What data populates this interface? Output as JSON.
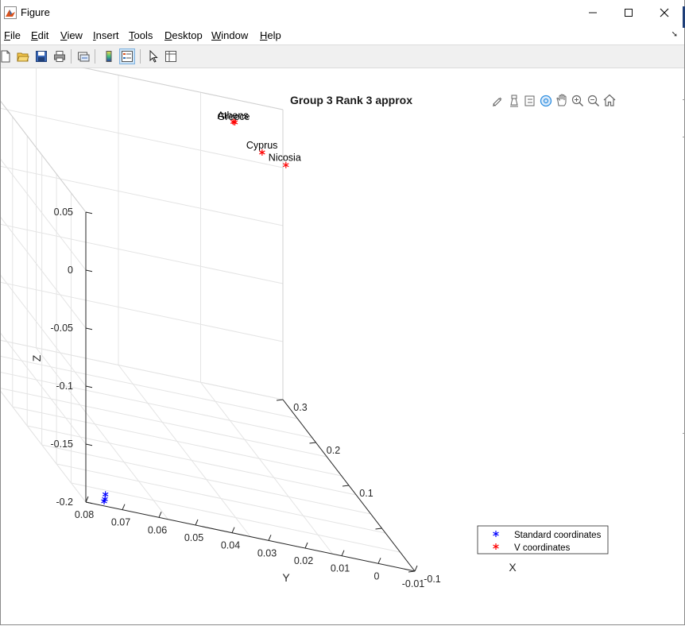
{
  "window": {
    "title": "Figure",
    "controls": {
      "minimize": "—",
      "maximize": "☐",
      "close": "✕"
    }
  },
  "menu": {
    "items": [
      {
        "label": "File",
        "key": "F"
      },
      {
        "label": "Edit",
        "key": "E"
      },
      {
        "label": "View",
        "key": "V"
      },
      {
        "label": "Insert",
        "key": "I"
      },
      {
        "label": "Tools",
        "key": "T"
      },
      {
        "label": "Desktop",
        "key": "D"
      },
      {
        "label": "Window",
        "key": "W"
      },
      {
        "label": "Help",
        "key": "H"
      }
    ]
  },
  "toolbar": {
    "icons": [
      "new-figure-icon",
      "open-file-icon",
      "save-icon",
      "print-icon",
      "link-plot-icon",
      "colorbar-icon",
      "legend-icon",
      "edit-plot-icon",
      "property-inspector-icon"
    ]
  },
  "axes_toolbar": {
    "icons": [
      "brush-icon",
      "data-tips-icon",
      "data-cursor-icon",
      "rotate-3d-icon",
      "pan-icon",
      "zoom-in-icon",
      "zoom-out-icon",
      "home-icon"
    ]
  },
  "chart_data": {
    "type": "scatter",
    "title": "Group 3 Rank 3 approx",
    "xlabel": "X",
    "ylabel": "Y",
    "zlabel": "Z",
    "xlim": [
      -0.1,
      0.3
    ],
    "ylim": [
      -0.01,
      0.08
    ],
    "zlim": [
      -0.2,
      0.05
    ],
    "xticks": [
      "-0.1",
      "0.1",
      "0.2",
      "0.3"
    ],
    "yticks": [
      "0.08",
      "0.07",
      "0.06",
      "0.05",
      "0.04",
      "0.03",
      "0.02",
      "0.01",
      "0",
      "-0.01"
    ],
    "zticks": [
      "0.05",
      "0",
      "-0.05",
      "-0.1",
      "-0.15",
      "-0.2"
    ],
    "grid": true,
    "legend_position": "bottom-right",
    "series": [
      {
        "name": "Standard coordinates",
        "color": "#0000ff",
        "marker": "*",
        "points": [
          {
            "x": -0.1,
            "y": 0.075,
            "z": -0.196
          },
          {
            "x": -0.097,
            "y": 0.0745,
            "z": -0.195
          },
          {
            "x": -0.093,
            "y": 0.074,
            "z": -0.192
          }
        ]
      },
      {
        "name": "V coordinates",
        "color": "#ff0000",
        "marker": "*",
        "points": [
          {
            "x": 0.18,
            "y": 0.0,
            "z": 0.04,
            "label": "Nicosia"
          },
          {
            "x": 0.23,
            "y": 0.002,
            "z": 0.031,
            "label": "Cyprus"
          },
          {
            "x": 0.285,
            "y": 0.0045,
            "z": 0.035,
            "label": "Greece"
          },
          {
            "x": 0.295,
            "y": 0.004,
            "z": 0.032,
            "label": "Athens"
          }
        ]
      }
    ]
  }
}
